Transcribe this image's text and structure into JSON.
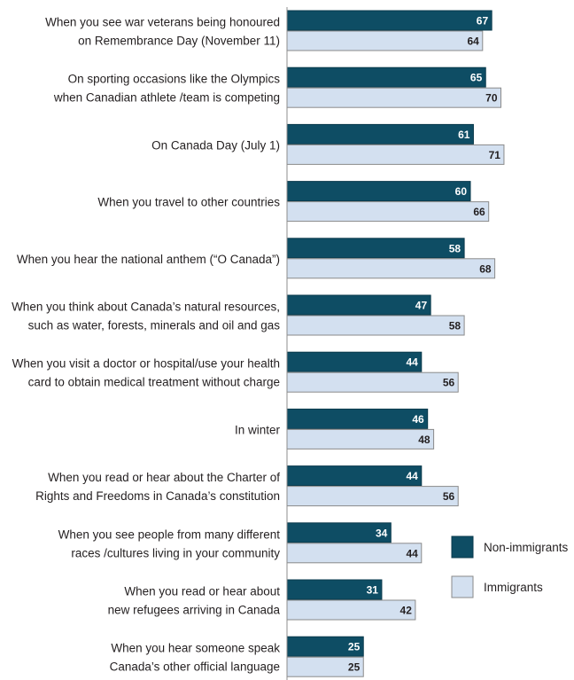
{
  "chart_data": {
    "type": "bar",
    "orientation": "horizontal",
    "categories": [
      [
        "When you see war veterans being honoured",
        "on Remembrance Day (November 11)"
      ],
      [
        "On sporting occasions like the Olympics",
        "when Canadian athlete /team is competing"
      ],
      [
        "On Canada Day (July 1)"
      ],
      [
        "When you travel to other countries"
      ],
      [
        "When you hear the national anthem (“O Canada”)"
      ],
      [
        "When you think about Canada’s natural resources,",
        "such as water, forests, minerals and oil and gas"
      ],
      [
        "When you visit a doctor or hospital/use your health",
        "card to obtain medical treatment without charge"
      ],
      [
        "In winter"
      ],
      [
        "When you read or hear about the Charter of",
        "Rights and Freedoms in Canada’s constitution"
      ],
      [
        "When you see people from many different",
        "races /cultures living in your community"
      ],
      [
        "When you read or hear about",
        "new refugees arriving in Canada"
      ],
      [
        "When you hear someone speak",
        "Canada’s other official language"
      ]
    ],
    "series": [
      {
        "name": "Non-immigrants",
        "color": "#0e4d64",
        "label_color": "#ffffff",
        "values": [
          67,
          65,
          61,
          60,
          58,
          47,
          44,
          46,
          44,
          34,
          31,
          25
        ]
      },
      {
        "name": "Immigrants",
        "color": "#d3e0f0",
        "label_color": "#231f20",
        "values": [
          64,
          70,
          71,
          66,
          68,
          58,
          56,
          48,
          56,
          44,
          42,
          25
        ]
      }
    ],
    "xlim": [
      0,
      100
    ],
    "grid": false,
    "legend_position": "right"
  }
}
